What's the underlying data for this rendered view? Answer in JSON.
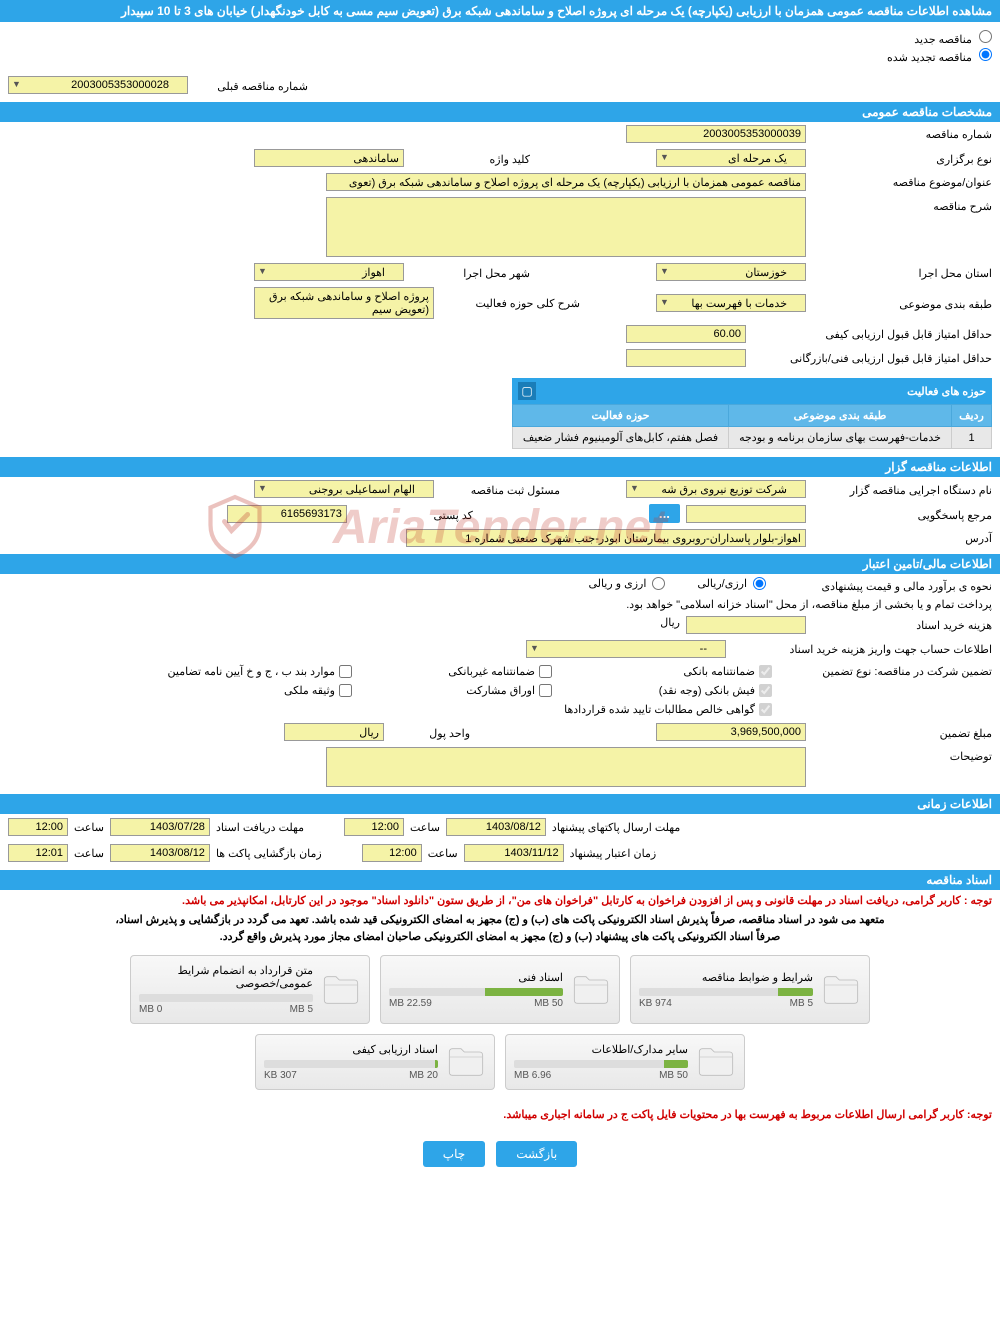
{
  "page_title": "مشاهده اطلاعات مناقصه عمومی همزمان با ارزیابی (یکپارچه) یک مرحله ای پروژه اصلاح و ساماندهی شبکه برق (تعویض سیم مسی به کابل خودنگهدار) خیابان های 3 تا 10 سپیدار",
  "radio": {
    "new_tender": "مناقصه جدید",
    "renewed_tender": "مناقصه تجدید شده"
  },
  "prev_number": {
    "label": "شماره مناقصه قبلی",
    "value": "2003005353000028"
  },
  "sections": {
    "general_info": "مشخصات مناقصه عمومی",
    "holder_info": "اطلاعات مناقصه گزار",
    "financial_info": "اطلاعات مالی/تامین اعتبار",
    "time_info": "اطلاعات زمانی",
    "docs": "اسناد مناقصه"
  },
  "general": {
    "tender_number": {
      "label": "شماره مناقصه",
      "value": "2003005353000039"
    },
    "holding_type": {
      "label": "نوع برگزاری",
      "value": "یک مرحله ای"
    },
    "keyword": {
      "label": "کلید واژه",
      "value": "ساماندهی"
    },
    "subject": {
      "label": "عنوان/موضوع مناقصه",
      "value": "مناقصه عمومی همزمان با ارزیابی (یکپارچه) یک مرحله ای پروژه اصلاح و ساماندهی شبکه برق (تعوی"
    },
    "description": {
      "label": "شرح مناقصه",
      "value": ""
    },
    "province": {
      "label": "استان محل اجرا",
      "value": "خوزستان"
    },
    "city": {
      "label": "شهر محل اجرا",
      "value": "اهواز"
    },
    "classification": {
      "label": "طبقه بندی موضوعی",
      "value": "خدمات با فهرست بها"
    },
    "activity_desc": {
      "label": "شرح کلی حوزه فعالیت",
      "value": "پروژه اصلاح و ساماندهی شبکه برق (تعویض سیم"
    },
    "min_quality_score": {
      "label": "حداقل امتیاز قابل قبول ارزیابی کیفی",
      "value": "60.00"
    },
    "min_tech_score": {
      "label": "حداقل امتیاز قابل قبول ارزیابی فنی/بازرگانی",
      "value": ""
    }
  },
  "activity_table": {
    "title": "حوزه های فعالیت",
    "cols": [
      "ردیف",
      "طبقه بندی موضوعی",
      "حوزه فعالیت"
    ],
    "rows": [
      [
        "1",
        "خدمات-فهرست بهای سازمان برنامه و بودجه",
        "فصل هفتم، کابل‌های آلومینیوم فشار ضعیف"
      ]
    ]
  },
  "holder": {
    "executive": {
      "label": "نام دستگاه اجرایی مناقصه گزار",
      "value": "شرکت توزیع نیروی برق شه"
    },
    "registrar": {
      "label": "مسئول ثبت مناقصه",
      "value": "الهام اسماعیلی بروجنی"
    },
    "responder": {
      "label": "مرجع پاسخگویی",
      "value": ""
    },
    "postal_code": {
      "label": "کد پستی",
      "value": "6165693173"
    },
    "address": {
      "label": "آدرس",
      "value": "اهواز-بلوار پاسداران-روبروی بیمارستان ابوذر-جنب شهرک صنعتی شماره 1"
    }
  },
  "financial": {
    "estimate_method": {
      "label": "نحوه ی برآورد مالی و قیمت پیشنهادی",
      "opt1": "ارزی/ریالی",
      "opt2": "ارزی و ریالی"
    },
    "payment_note": "پرداخت تمام و یا بخشی از مبلغ مناقصه، از محل \"اسناد خزانه اسلامی\" خواهد بود.",
    "doc_fee": {
      "label": "هزینه خرید اسناد",
      "value": "",
      "unit": "ریال"
    },
    "account_info": {
      "label": "اطلاعات حساب جهت واریز هزینه خرید اسناد",
      "value": "--"
    },
    "guarantee_type_label": "تضمین شرکت در مناقصه:   نوع تضمین",
    "guarantees": {
      "bank_guarantee": "ضمانتنامه بانکی",
      "nonbank_guarantee": "ضمانتنامه غیربانکی",
      "bylaw_items": "موارد بند ب ، ج و خ آیین نامه تضامین",
      "bank_receipt": "فیش بانکی (وجه نقد)",
      "securities": "اوراق مشارکت",
      "property": "وثیقه ملکی",
      "receivables": "گواهی خالص مطالبات تایید شده قراردادها"
    },
    "guarantee_amount": {
      "label": "مبلغ تضمین",
      "value": "3,969,500,000"
    },
    "currency_unit": {
      "label": "واحد پول",
      "value": "ریال"
    },
    "notes": {
      "label": "توضیحات",
      "value": ""
    }
  },
  "timing": {
    "receive_deadline": {
      "label": "مهلت دریافت اسناد",
      "date": "1403/07/28",
      "time_label": "ساعت",
      "time": "12:00"
    },
    "send_deadline": {
      "label": "مهلت ارسال پاکتهای پیشنهاد",
      "date": "1403/08/12",
      "time_label": "ساعت",
      "time": "12:00"
    },
    "open_time": {
      "label": "زمان بازگشایی پاکت ها",
      "date": "1403/08/12",
      "time_label": "ساعت",
      "time": "12:01"
    },
    "validity": {
      "label": "زمان اعتبار پیشنهاد",
      "date": "1403/11/12",
      "time_label": "ساعت",
      "time": "12:00"
    }
  },
  "doc_notices": {
    "n1": "توجه : کاربر گرامی، دریافت اسناد در مهلت قانونی و پس از افزودن فراخوان به کارتابل \"فراخوان های من\"، از طریق ستون \"دانلود اسناد\" موجود در این کارتابل، امکانپذیر می باشد.",
    "n2": "متعهد می شود در اسناد مناقصه، صرفاً پذیرش اسناد الکترونیکی پاکت های (ب) و (ج) مجهز به امضای الکترونیکی قید شده باشد. تعهد می گردد در بازگشایی و پذیرش اسناد،",
    "n3": "صرفاً اسناد الکترونیکی پاکت های پیشنهاد (ب) و (ج) مجهز به امضای الکترونیکی صاحبان امضای مجاز مورد پذیرش واقع گردد."
  },
  "files": [
    {
      "title": "شرایط و ضوابط مناقصه",
      "used": "974 KB",
      "cap": "5 MB",
      "pct": 20
    },
    {
      "title": "اسناد فنی",
      "used": "22.59 MB",
      "cap": "50 MB",
      "pct": 45
    },
    {
      "title": "متن قرارداد به انضمام شرایط عمومی/خصوصی",
      "used": "0 MB",
      "cap": "5 MB",
      "pct": 0
    },
    {
      "title": "سایر مدارک/اطلاعات",
      "used": "6.96 MB",
      "cap": "50 MB",
      "pct": 14
    },
    {
      "title": "اسناد ارزیابی کیفی",
      "used": "307 KB",
      "cap": "20 MB",
      "pct": 2
    }
  ],
  "bottom_notice": "توجه: کاربر گرامی ارسال اطلاعات مربوط به فهرست بها در محتویات فایل پاکت ج در سامانه اجباری میباشد.",
  "buttons": {
    "back": "بازگشت",
    "print": "چاپ",
    "lookup": "..."
  },
  "colors": {
    "header_bg": "#2ea5e8",
    "input_bg": "#f5f3a7",
    "red": "#d00000",
    "progress": "#7cb342"
  },
  "watermark": "AriaTender.net"
}
